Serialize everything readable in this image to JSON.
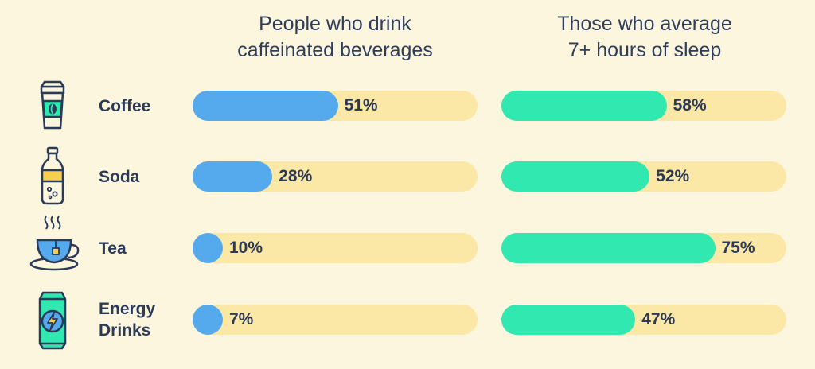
{
  "colors": {
    "background": "#fdf6df",
    "track": "#fbe8a6",
    "caffeine_series": "#55aaee",
    "sleep_series": "#30e8b0",
    "text": "#2b3a57",
    "icon_stroke": "#2b3a57"
  },
  "icons": [
    "coffee-cup-icon",
    "soda-bottle-icon",
    "tea-cup-icon",
    "energy-drink-can-icon"
  ],
  "chart_data": {
    "type": "bar",
    "orientation": "horizontal",
    "value_format": "percent",
    "xlim": [
      0,
      100
    ],
    "categories": [
      [
        "Coffee"
      ],
      [
        "Soda"
      ],
      [
        "Tea"
      ],
      [
        "Energy",
        "Drinks"
      ]
    ],
    "series": [
      {
        "name_lines": [
          "People who drink",
          "caffeinated beverages"
        ],
        "color": "#55aaee",
        "values": [
          51,
          28,
          10,
          7
        ]
      },
      {
        "name_lines": [
          "Those who average",
          "7+ hours of sleep"
        ],
        "color": "#30e8b0",
        "values": [
          58,
          52,
          75,
          47
        ]
      }
    ]
  }
}
